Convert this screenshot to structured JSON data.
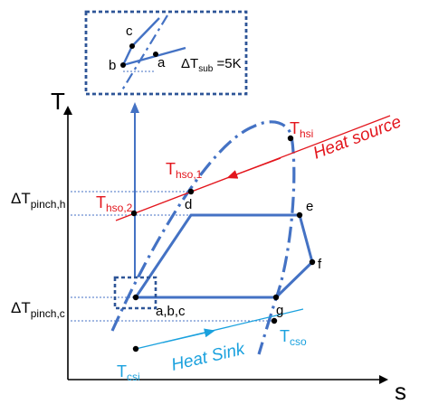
{
  "axes": {
    "y_label": "T",
    "x_label": "s"
  },
  "labels": {
    "delta_t_pinch_h": {
      "main": "ΔT",
      "sub": "pinch,h"
    },
    "delta_t_pinch_c": {
      "main": "ΔT",
      "sub": "pinch,c"
    },
    "t_hsi": {
      "main": "T",
      "sub": "hsi"
    },
    "t_hso1": {
      "main": "T",
      "sub": "hso,1"
    },
    "t_hso2": {
      "main": "T",
      "sub": "hso,2"
    },
    "t_cso": {
      "main": "T",
      "sub": "cso"
    },
    "t_csi": {
      "main": "T",
      "sub": "csi"
    },
    "heat_source": "Heat source",
    "heat_sink": "Heat Sink",
    "point_d": "d",
    "point_e": "e",
    "point_f": "f",
    "point_g": "g",
    "point_abc": "a,b,c"
  },
  "inset": {
    "label_a": "a",
    "label_b": "b",
    "label_c": "c",
    "delta_t_sub": {
      "main": "ΔT",
      "sub": "sub",
      "value": " =5K"
    }
  },
  "colors": {
    "cycle": "#4472c4",
    "heat_source": "#e3161d",
    "heat_sink": "#1aa1de",
    "guide": "#4472c4",
    "axis": "#000000"
  }
}
